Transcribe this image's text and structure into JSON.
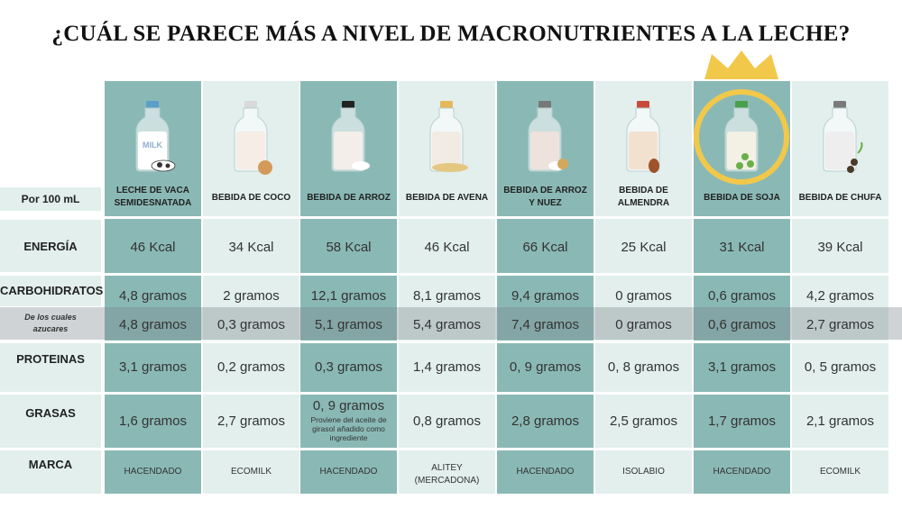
{
  "title": "¿CUÁL SE PARECE MÁS A NIVEL DE MACRONUTRIENTES A LA LECHE?",
  "row_labels": {
    "per": "Por 100 mL",
    "energia": "ENERGÍA",
    "carbohidratos": "CARBOHIDRATOS",
    "azucares_line1": "De los cuales",
    "azucares_line2": "azucares",
    "proteinas": "PROTEINAS",
    "grasas": "GRASAS",
    "marca": "MARCA"
  },
  "bottle_label": "MILK",
  "columns": [
    {
      "name1": "LECHE DE VACA",
      "name2": "SEMIDESNATADA",
      "energia": "46 Kcal",
      "carbohidratos": "4,8 gramos",
      "azucares": "4,8 gramos",
      "proteinas": "3,1 gramos",
      "grasas": "1,6 gramos",
      "marca1": "HACENDADO",
      "marca2": ""
    },
    {
      "name1": "BEBIDA DE COCO",
      "name2": "",
      "energia": "34 Kcal",
      "carbohidratos": "2  gramos",
      "azucares": "0,3 gramos",
      "proteinas": "0,2  gramos",
      "grasas": "2,7  gramos",
      "marca1": "ECOMILK",
      "marca2": ""
    },
    {
      "name1": "BEBIDA DE ARROZ",
      "name2": "",
      "energia": "58 Kcal",
      "carbohidratos": "12,1 gramos",
      "azucares": "5,1 gramos",
      "proteinas": "0,3 gramos",
      "grasas": "0, 9 gramos",
      "grasas_note1": "Proviene del aceite de",
      "grasas_note2": "girasol  añadido como",
      "grasas_note3": "ingrediente",
      "marca1": "HACENDADO",
      "marca2": ""
    },
    {
      "name1": "BEBIDA DE AVENA",
      "name2": "",
      "energia": "46 Kcal",
      "carbohidratos": "8,1 gramos",
      "azucares": "5,4 gramos",
      "proteinas": "1,4 gramos",
      "grasas": "0,8 gramos",
      "marca1": "ALITEY",
      "marca2": "(MERCADONA)"
    },
    {
      "name1": "BEBIDA DE ARROZ",
      "name2": "Y NUEZ",
      "energia": "66 Kcal",
      "carbohidratos": "9,4 gramos",
      "azucares": "7,4 gramos",
      "proteinas": "0, 9 gramos",
      "grasas": "2,8 gramos",
      "marca1": "HACENDADO",
      "marca2": ""
    },
    {
      "name1": "BEBIDA DE",
      "name2": "ALMENDRA",
      "energia": "25 Kcal",
      "carbohidratos": "0 gramos",
      "azucares": "0 gramos",
      "proteinas": "0, 8 gramos",
      "grasas": "2,5 gramos",
      "marca1": "ISOLABIO",
      "marca2": ""
    },
    {
      "name1": "BEBIDA DE SOJA",
      "name2": "",
      "energia": "31 Kcal",
      "carbohidratos": "0,6 gramos",
      "azucares": "0,6 gramos",
      "proteinas": "3,1 gramos",
      "grasas": "1,7 gramos",
      "marca1": "HACENDADO",
      "marca2": ""
    },
    {
      "name1": "BEBIDA DE CHUFA",
      "name2": "",
      "energia": "39 Kcal",
      "carbohidratos": "4,2 gramos",
      "azucares": "2,7 gramos",
      "proteinas": "0, 5 gramos",
      "grasas": "2,1 gramos",
      "marca1": "ECOMILK",
      "marca2": ""
    }
  ],
  "colors": {
    "teal": "#8ab9b5",
    "light": "#e2efed",
    "crown": "#f2c84b"
  }
}
